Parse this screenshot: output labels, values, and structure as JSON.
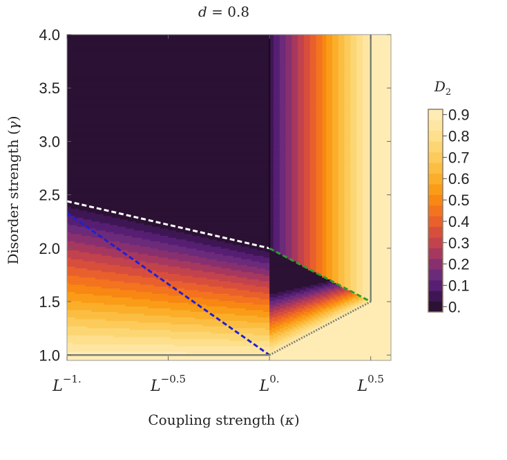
{
  "chart_data": {
    "type": "heatmap",
    "title": "d = 0.8",
    "title_parts": {
      "variable": "d",
      "equals": " = ",
      "value": "0.8"
    },
    "xlabel": "Coupling strength",
    "xlabel_symbol": "κ",
    "ylabel": "Disorder strength",
    "ylabel_symbol": "γ",
    "x_scale": "log L",
    "xlim": [
      -1.0,
      0.6
    ],
    "ylim": [
      0.95,
      4.0
    ],
    "x_ticks": [
      {
        "value": -1.0,
        "base": "L",
        "exponent": "−1."
      },
      {
        "value": -0.5,
        "base": "L",
        "exponent": "−0.5"
      },
      {
        "value": 0.0,
        "base": "L",
        "exponent": "0."
      },
      {
        "value": 0.5,
        "base": "L",
        "exponent": "0.5"
      }
    ],
    "y_ticks": [
      {
        "value": 1.0,
        "label": "1.0"
      },
      {
        "value": 1.5,
        "label": "1.5"
      },
      {
        "value": 2.0,
        "label": "2.0"
      },
      {
        "value": 2.5,
        "label": "2.5"
      },
      {
        "value": 3.0,
        "label": "3.0"
      },
      {
        "value": 3.5,
        "label": "3.5"
      },
      {
        "value": 4.0,
        "label": "4.0"
      }
    ],
    "colorbar": {
      "title_base": "D",
      "title_sub": "2",
      "min": 0.0,
      "max": 0.95,
      "ticks": [
        {
          "value": 0.0,
          "label": "0."
        },
        {
          "value": 0.1,
          "label": "0.1"
        },
        {
          "value": 0.2,
          "label": "0.2"
        },
        {
          "value": 0.3,
          "label": "0.3"
        },
        {
          "value": 0.4,
          "label": "0.4"
        },
        {
          "value": 0.5,
          "label": "0.5"
        },
        {
          "value": 0.6,
          "label": "0.6"
        },
        {
          "value": 0.7,
          "label": "0.7"
        },
        {
          "value": 0.8,
          "label": "0.8"
        },
        {
          "value": 0.9,
          "label": "0.9"
        }
      ],
      "bands": [
        {
          "from": 0.0,
          "to": 0.05,
          "color": "#2b1133"
        },
        {
          "from": 0.05,
          "to": 0.1,
          "color": "#3f1655"
        },
        {
          "from": 0.1,
          "to": 0.15,
          "color": "#561f73"
        },
        {
          "from": 0.15,
          "to": 0.2,
          "color": "#6c2a7a"
        },
        {
          "from": 0.2,
          "to": 0.25,
          "color": "#88306f"
        },
        {
          "from": 0.25,
          "to": 0.3,
          "color": "#a6385f"
        },
        {
          "from": 0.3,
          "to": 0.35,
          "color": "#c2424d"
        },
        {
          "from": 0.35,
          "to": 0.4,
          "color": "#d74f3c"
        },
        {
          "from": 0.4,
          "to": 0.45,
          "color": "#e9602d"
        },
        {
          "from": 0.45,
          "to": 0.5,
          "color": "#f4731f"
        },
        {
          "from": 0.5,
          "to": 0.55,
          "color": "#f88713"
        },
        {
          "from": 0.55,
          "to": 0.6,
          "color": "#fa9c17"
        },
        {
          "from": 0.6,
          "to": 0.65,
          "color": "#fbae2a"
        },
        {
          "from": 0.65,
          "to": 0.7,
          "color": "#fbbe42"
        },
        {
          "from": 0.7,
          "to": 0.75,
          "color": "#fccb5b"
        },
        {
          "from": 0.75,
          "to": 0.8,
          "color": "#fdd674"
        },
        {
          "from": 0.8,
          "to": 0.85,
          "color": "#fddf8c"
        },
        {
          "from": 0.85,
          "to": 0.9,
          "color": "#fee6a2"
        },
        {
          "from": 0.9,
          "to": 0.95,
          "color": "#ffecb5"
        }
      ]
    },
    "boundary_lines": [
      {
        "name": "localized-phase-boundary",
        "color": "#ffffff",
        "style": "dashed",
        "points": [
          [
            -1.0,
            2.44
          ],
          [
            0.0,
            2.0
          ]
        ]
      },
      {
        "name": "fractal-boundary-blue",
        "color": "#1f1fd6",
        "style": "dashed",
        "points": [
          [
            -1.0,
            2.33
          ],
          [
            0.0,
            1.0
          ]
        ]
      },
      {
        "name": "fractal-boundary-green",
        "color": "#2e9a2e",
        "style": "dashed",
        "points": [
          [
            0.0,
            2.0
          ],
          [
            0.5,
            1.5
          ]
        ]
      },
      {
        "name": "delocalized-boundary-lower",
        "color": "#808070",
        "style": "solid",
        "points": [
          [
            -1.0,
            1.0
          ],
          [
            0.0,
            1.0
          ]
        ]
      },
      {
        "name": "delocalized-boundary-diagonal",
        "color": "#808070",
        "style": "dotted",
        "points": [
          [
            0.0,
            1.0
          ],
          [
            0.5,
            1.5
          ]
        ]
      },
      {
        "name": "delocalized-boundary-right",
        "color": "#808070",
        "style": "solid",
        "points": [
          [
            0.5,
            1.5
          ],
          [
            0.5,
            4.0
          ]
        ]
      },
      {
        "name": "localized-boundary-vertical",
        "color": "#1a0a20",
        "style": "solid",
        "points": [
          [
            0.0,
            2.0
          ],
          [
            0.0,
            4.0
          ]
        ]
      }
    ]
  }
}
